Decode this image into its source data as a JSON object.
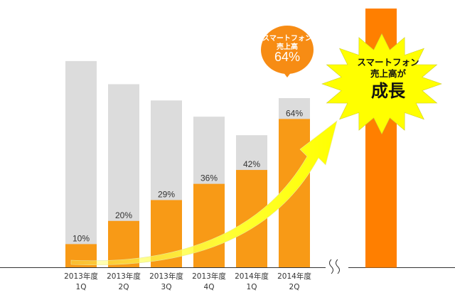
{
  "chart_data": {
    "type": "bar",
    "categories": [
      [
        "2013年度",
        "1Q"
      ],
      [
        "2013年度",
        "2Q"
      ],
      [
        "2013年度",
        "3Q"
      ],
      [
        "2013年度",
        "4Q"
      ],
      [
        "2014年度",
        "1Q"
      ],
      [
        "2014年度",
        "2Q"
      ]
    ],
    "values": [
      10,
      20,
      29,
      36,
      42,
      64
    ],
    "value_labels": [
      "10%",
      "20%",
      "29%",
      "36%",
      "42%",
      "64%"
    ],
    "background_bar_heights": [
      89,
      79,
      72,
      65,
      57,
      73
    ],
    "ylim": [
      0,
      100
    ],
    "grid": false,
    "colors": {
      "background_bar": "#dcdcdc",
      "value_bar": "#f89a16",
      "tall_bar": "#ff7f00",
      "arrow": "#ffff33",
      "axis": "#333333"
    }
  },
  "callout": {
    "line1": "スマートフォン",
    "line2": "売上高",
    "value": "64%",
    "color": "#f78c14"
  },
  "burst": {
    "line1": "スマートフォン",
    "line2": "売上高が",
    "line3": "成長",
    "color": "#ffff00"
  }
}
